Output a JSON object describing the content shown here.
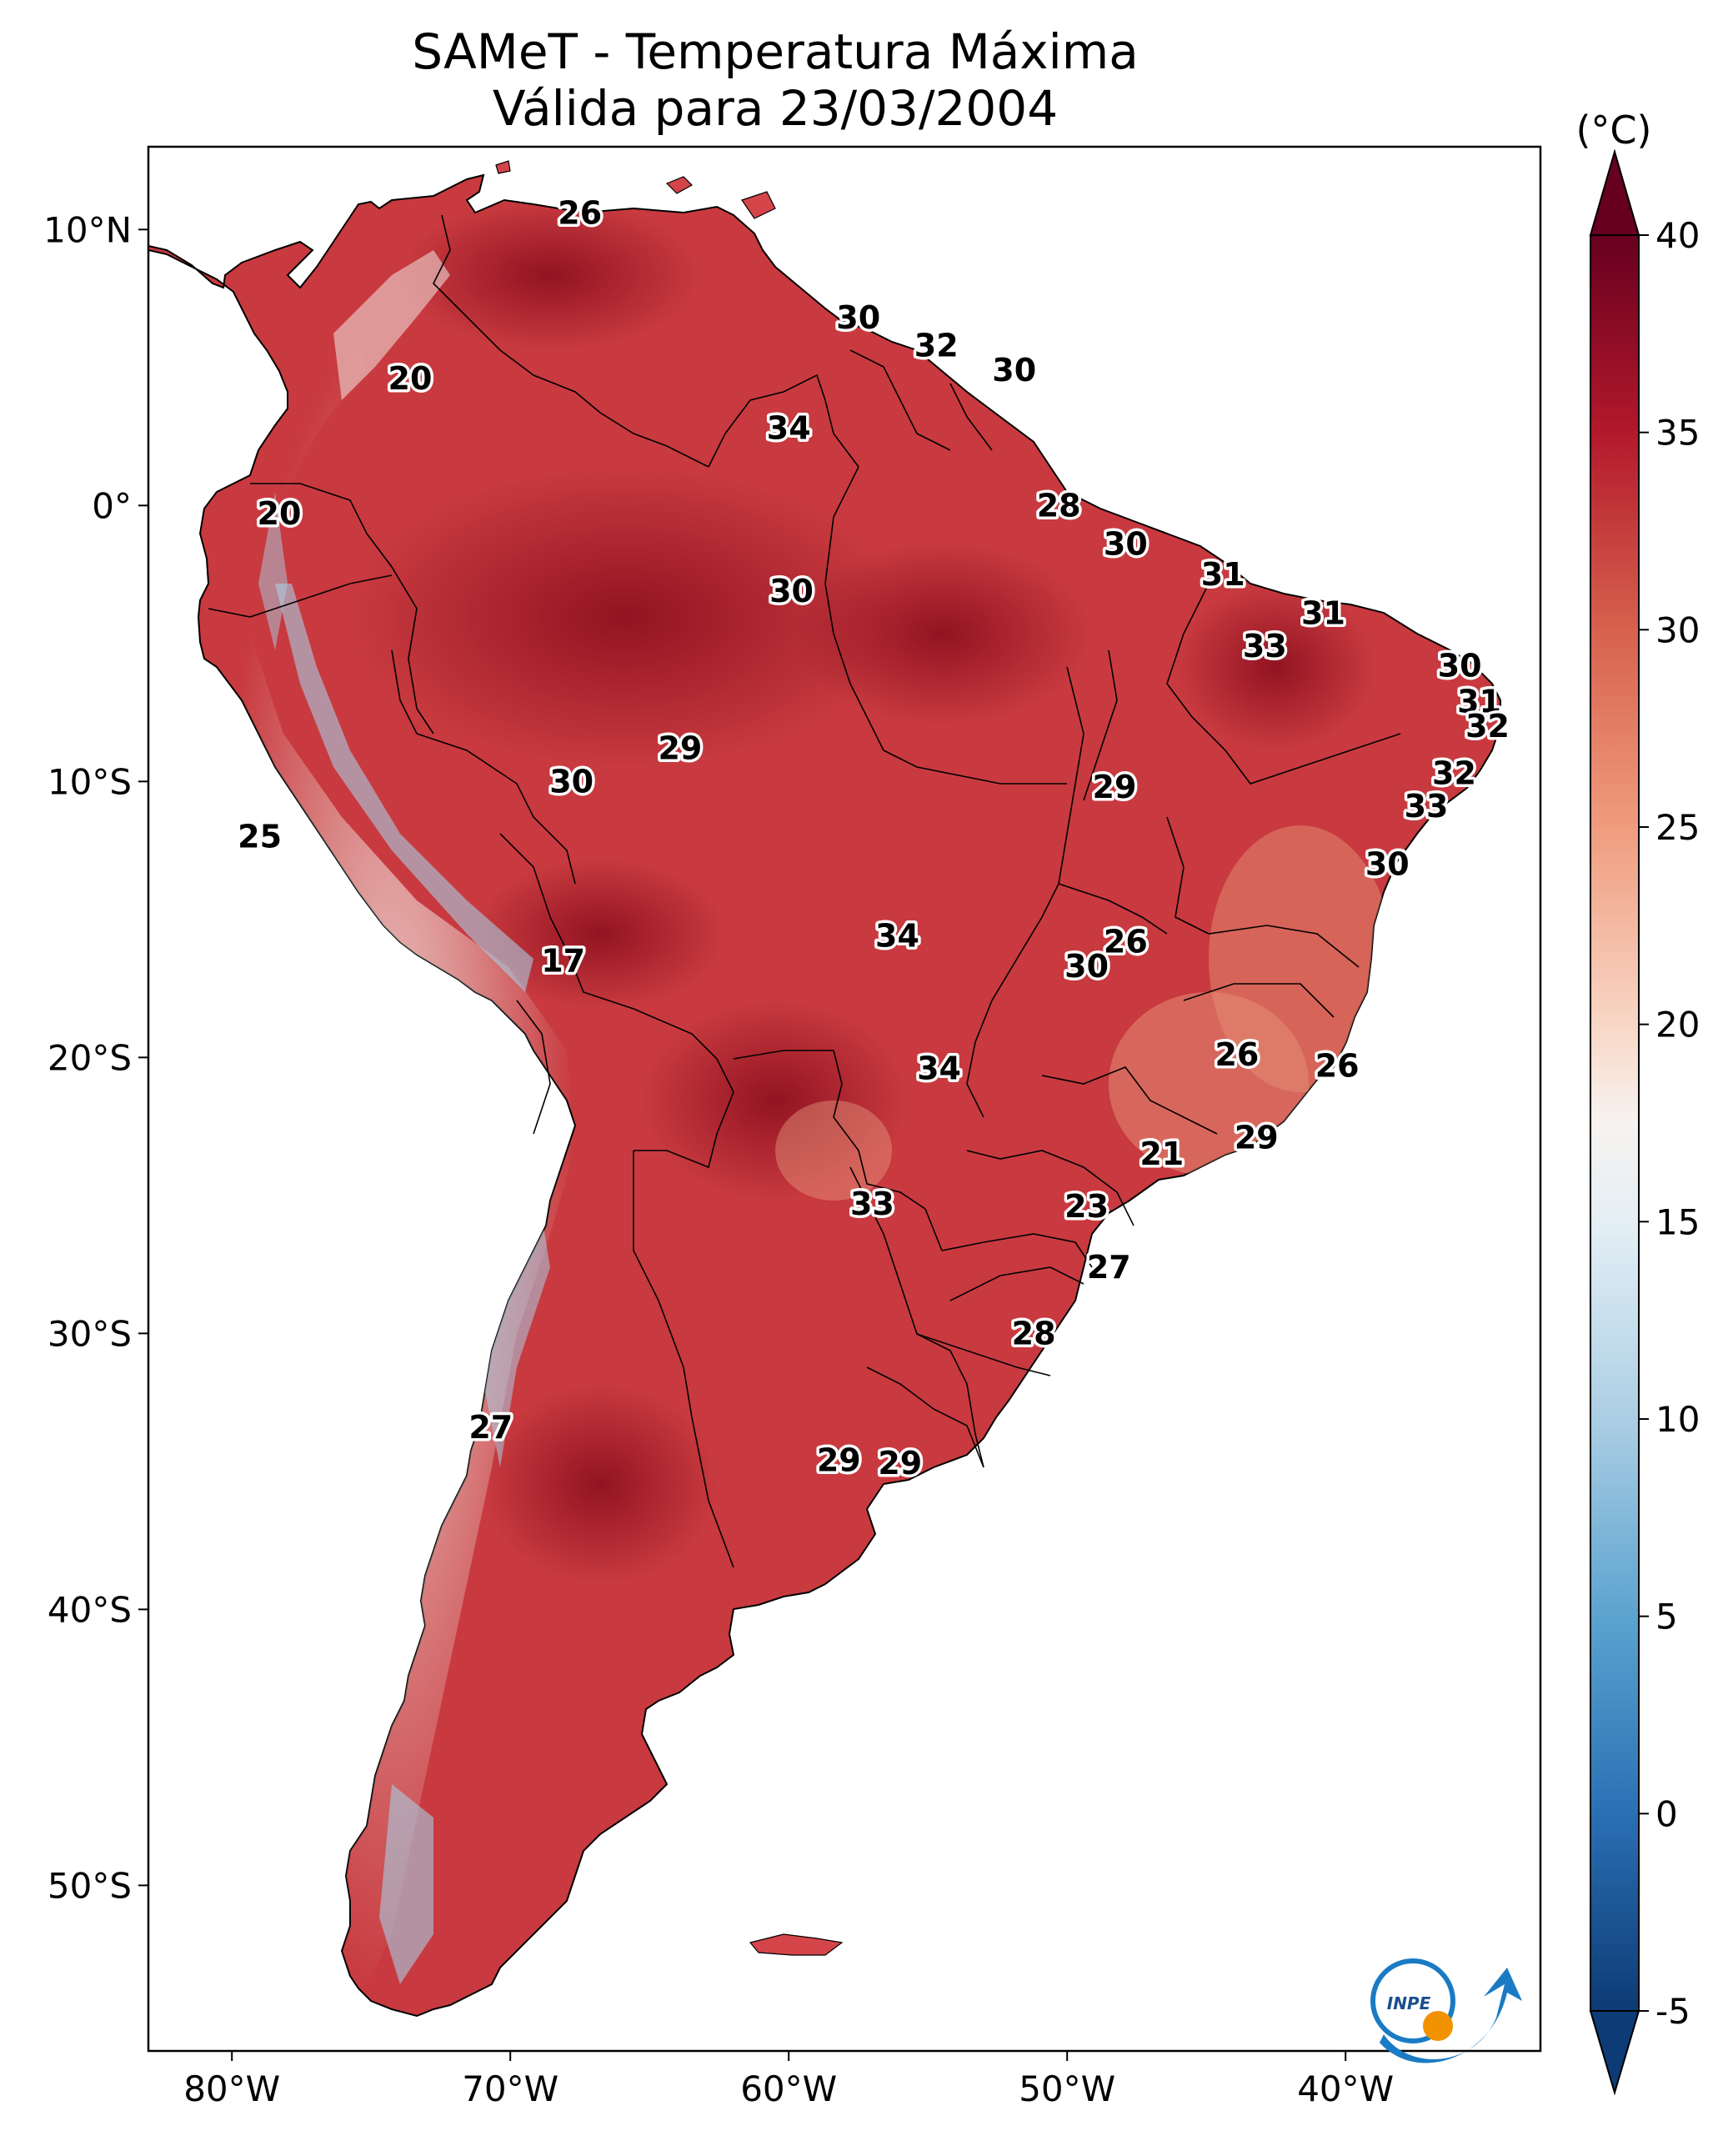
{
  "title": {
    "line1": "SAMeT - Temperatura Máxima",
    "line2": "Válida para 23/03/2004"
  },
  "map": {
    "lon_range": [
      -83,
      -33
    ],
    "lat_range": [
      -56,
      13
    ],
    "lat_ticks": [
      {
        "value": 10,
        "label": "10°N"
      },
      {
        "value": 0,
        "label": "0°"
      },
      {
        "value": -10,
        "label": "10°S"
      },
      {
        "value": -20,
        "label": "20°S"
      },
      {
        "value": -30,
        "label": "30°S"
      },
      {
        "value": -40,
        "label": "40°S"
      },
      {
        "value": -50,
        "label": "50°S"
      }
    ],
    "lon_ticks": [
      {
        "value": -80,
        "label": "80°W"
      },
      {
        "value": -70,
        "label": "70°W"
      },
      {
        "value": -60,
        "label": "60°W"
      },
      {
        "value": -50,
        "label": "50°W"
      },
      {
        "value": -40,
        "label": "40°W"
      }
    ],
    "city_labels": [
      {
        "lon": -67.5,
        "lat": 10.6,
        "value": "26"
      },
      {
        "lon": -57.5,
        "lat": 6.8,
        "value": "30"
      },
      {
        "lon": -54.7,
        "lat": 5.8,
        "value": "32"
      },
      {
        "lon": -51.9,
        "lat": 4.9,
        "value": "30"
      },
      {
        "lon": -73.6,
        "lat": 4.6,
        "value": "20"
      },
      {
        "lon": -60.0,
        "lat": 2.8,
        "value": "34"
      },
      {
        "lon": -50.3,
        "lat": 0.0,
        "value": "28"
      },
      {
        "lon": -78.3,
        "lat": -0.3,
        "value": "20"
      },
      {
        "lon": -47.9,
        "lat": -1.4,
        "value": "30"
      },
      {
        "lon": -44.4,
        "lat": -2.5,
        "value": "31"
      },
      {
        "lon": -59.9,
        "lat": -3.1,
        "value": "30"
      },
      {
        "lon": -40.8,
        "lat": -3.9,
        "value": "31"
      },
      {
        "lon": -42.9,
        "lat": -5.1,
        "value": "33"
      },
      {
        "lon": -35.9,
        "lat": -5.8,
        "value": "30"
      },
      {
        "lon": -35.2,
        "lat": -7.1,
        "value": "31"
      },
      {
        "lon": -34.9,
        "lat": -8.0,
        "value": "32"
      },
      {
        "lon": -63.9,
        "lat": -8.8,
        "value": "29"
      },
      {
        "lon": -36.1,
        "lat": -9.7,
        "value": "32"
      },
      {
        "lon": -67.8,
        "lat": -10.0,
        "value": "30"
      },
      {
        "lon": -48.3,
        "lat": -10.2,
        "value": "29"
      },
      {
        "lon": -37.1,
        "lat": -10.9,
        "value": "33"
      },
      {
        "lon": -79.0,
        "lat": -12.0,
        "value": "25"
      },
      {
        "lon": -38.5,
        "lat": -13.0,
        "value": "30"
      },
      {
        "lon": -56.1,
        "lat": -15.6,
        "value": "34"
      },
      {
        "lon": -47.9,
        "lat": -15.8,
        "value": "26"
      },
      {
        "lon": -49.3,
        "lat": -16.7,
        "value": "30"
      },
      {
        "lon": -68.1,
        "lat": -16.5,
        "value": "17"
      },
      {
        "lon": -43.9,
        "lat": -19.9,
        "value": "26"
      },
      {
        "lon": -40.3,
        "lat": -20.3,
        "value": "26"
      },
      {
        "lon": -54.6,
        "lat": -20.4,
        "value": "34"
      },
      {
        "lon": -43.2,
        "lat": -22.9,
        "value": "29"
      },
      {
        "lon": -46.6,
        "lat": -23.5,
        "value": "21"
      },
      {
        "lon": -57.0,
        "lat": -25.3,
        "value": "33"
      },
      {
        "lon": -49.3,
        "lat": -25.4,
        "value": "23"
      },
      {
        "lon": -48.5,
        "lat": -27.6,
        "value": "27"
      },
      {
        "lon": -51.2,
        "lat": -30.0,
        "value": "28"
      },
      {
        "lon": -70.7,
        "lat": -33.4,
        "value": "27"
      },
      {
        "lon": -58.2,
        "lat": -34.6,
        "value": "29"
      },
      {
        "lon": -56.0,
        "lat": -34.7,
        "value": "29"
      }
    ]
  },
  "colorbar": {
    "unit": "(°C)",
    "min": -5,
    "max": 40,
    "ticks": [
      {
        "value": 40,
        "label": "40"
      },
      {
        "value": 35,
        "label": "35"
      },
      {
        "value": 30,
        "label": "30"
      },
      {
        "value": 25,
        "label": "25"
      },
      {
        "value": 20,
        "label": "20"
      },
      {
        "value": 15,
        "label": "15"
      },
      {
        "value": 10,
        "label": "10"
      },
      {
        "value": 5,
        "label": "5"
      },
      {
        "value": 0,
        "label": "0"
      },
      {
        "value": -5,
        "label": "-5"
      }
    ]
  },
  "logo": {
    "text": "INPE",
    "colors": {
      "blue": "#1a7bc4",
      "orange": "#f39200"
    }
  },
  "colors": {
    "land_hot": "#c0303a",
    "land_very_hot": "#9e1a26",
    "land_warm": "#de7060",
    "land_cool": "#f6d0bf",
    "land_cold": "#a9cde3",
    "border": "#000000"
  }
}
